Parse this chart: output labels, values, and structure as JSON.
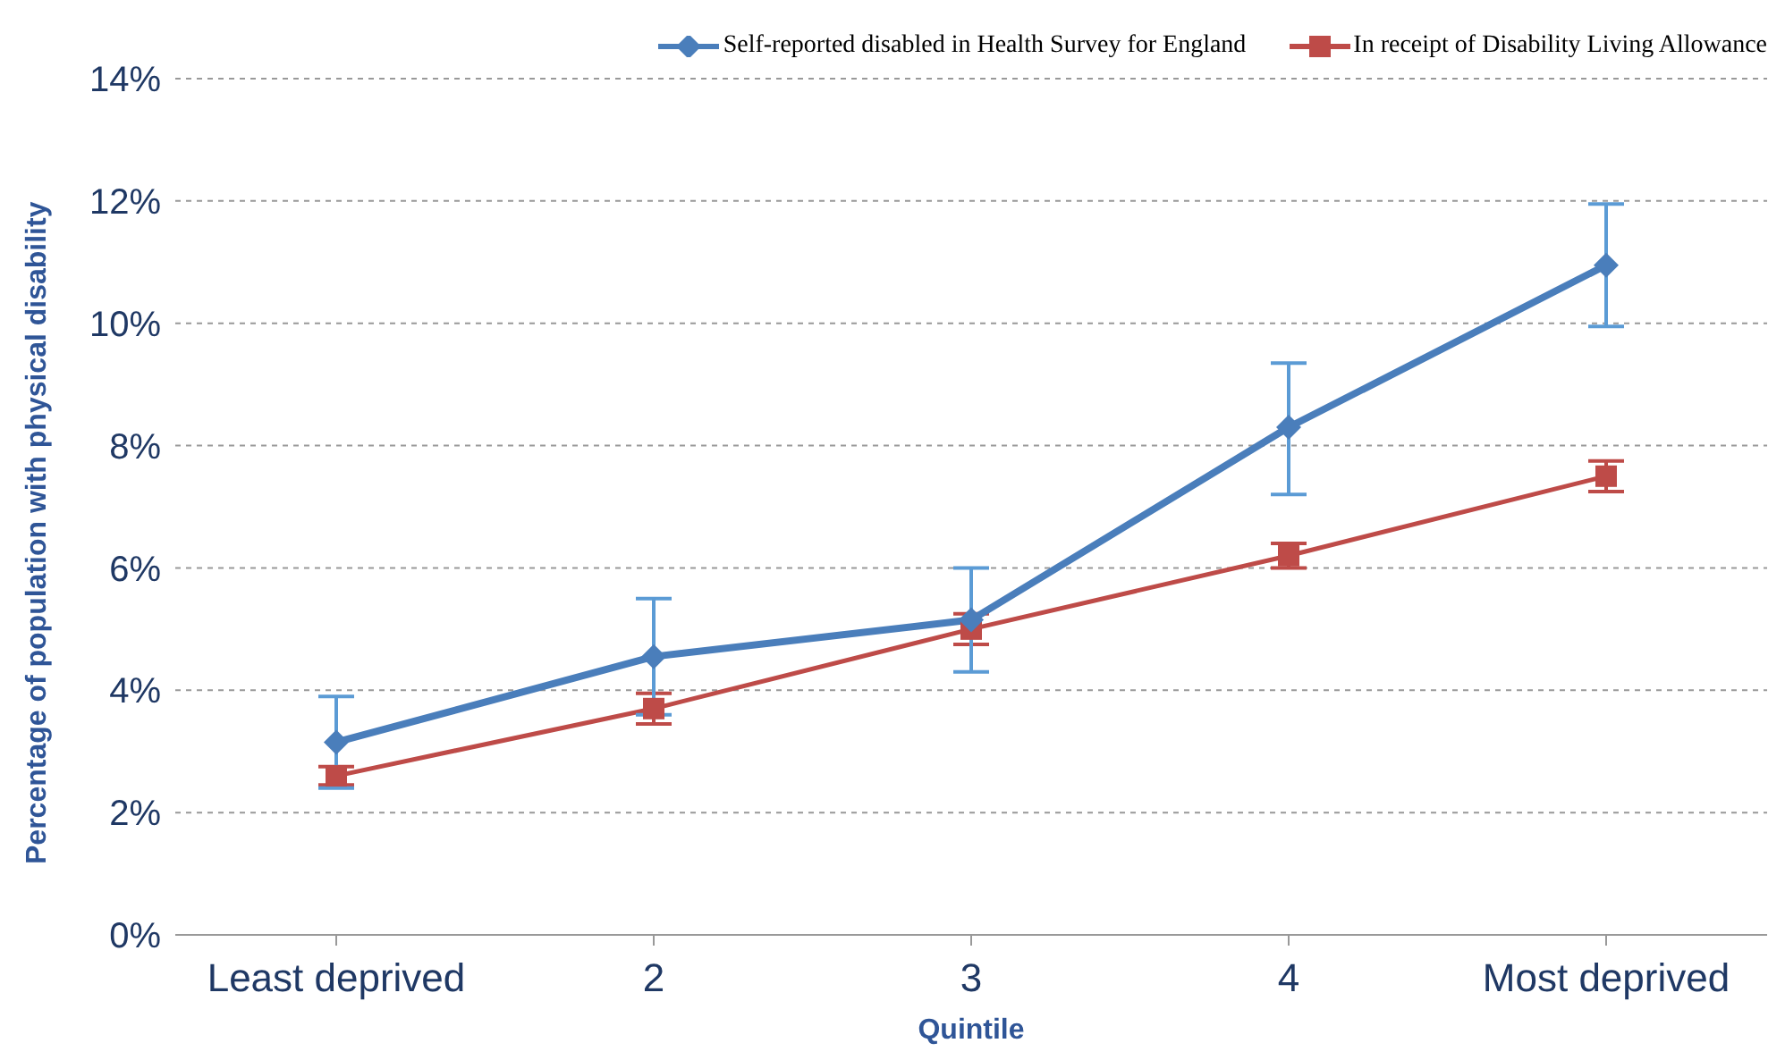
{
  "chart_data": {
    "type": "line",
    "xlabel": "Quintile",
    "ylabel": "Percentage of population with physical disability",
    "categories": [
      "Least deprived",
      "2",
      "3",
      "4",
      "Most deprived"
    ],
    "series": [
      {
        "name": "Self-reported disabled in Health Survey for England",
        "color": "#4a7ebb",
        "values": [
          3.15,
          4.55,
          5.15,
          8.3,
          10.95
        ],
        "errors": [
          [
            2.4,
            3.9
          ],
          [
            3.6,
            5.5
          ],
          [
            4.3,
            6.0
          ],
          [
            7.2,
            9.35
          ],
          [
            9.95,
            11.95
          ]
        ],
        "marker": "diamond"
      },
      {
        "name": "In receipt of Disability Living Allowance",
        "color": "#be4b48",
        "values": [
          2.6,
          3.7,
          5.0,
          6.2,
          7.5
        ],
        "errors": [
          [
            2.45,
            2.75
          ],
          [
            3.45,
            3.95
          ],
          [
            4.75,
            5.25
          ],
          [
            6.0,
            6.4
          ],
          [
            7.25,
            7.75
          ]
        ],
        "marker": "square"
      }
    ],
    "ylim": [
      0,
      14
    ],
    "yticks": [
      {
        "value": 0,
        "label": "0%"
      },
      {
        "value": 2,
        "label": "2%"
      },
      {
        "value": 4,
        "label": "4%"
      },
      {
        "value": 6,
        "label": "6%"
      },
      {
        "value": 8,
        "label": "8%"
      },
      {
        "value": 10,
        "label": "10%"
      },
      {
        "value": 12,
        "label": "12%"
      },
      {
        "value": 14,
        "label": "14%"
      }
    ],
    "grid": "y",
    "legend": "top right"
  }
}
